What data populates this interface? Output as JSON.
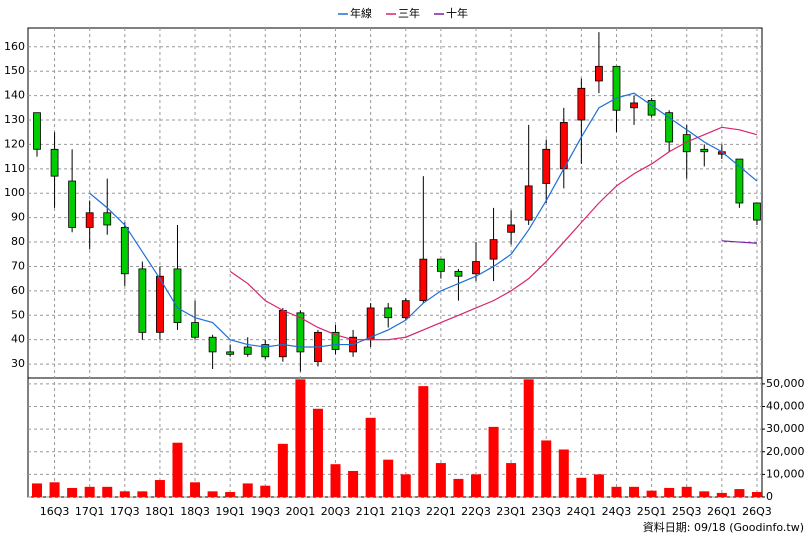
{
  "chart_data": [
    {
      "type": "candlestick",
      "categories": [
        null,
        "16Q3",
        null,
        "17Q1",
        null,
        "17Q3",
        null,
        "18Q1",
        null,
        "18Q3",
        null,
        "19Q1",
        null,
        "19Q3",
        null,
        "20Q1",
        null,
        "20Q3",
        null,
        "21Q1",
        null,
        "21Q3",
        null,
        "22Q1",
        null,
        "22Q3",
        null,
        "23Q1",
        null,
        "23Q3",
        null,
        "24Q1",
        null,
        "24Q3",
        null,
        "25Q1",
        null,
        "25Q3",
        null,
        "26Q1",
        null,
        "26Q3"
      ],
      "open": [
        133,
        118,
        105,
        86,
        92,
        86,
        69,
        43,
        69,
        47,
        41,
        35,
        37,
        38,
        33,
        51,
        31,
        43,
        35,
        40,
        53,
        49,
        56,
        73,
        68,
        67,
        73,
        84,
        89,
        104,
        110,
        130,
        146,
        152,
        135,
        138,
        133,
        124,
        118,
        116,
        114,
        96
      ],
      "high": [
        133,
        125,
        118,
        97,
        106,
        88,
        72,
        70,
        87,
        56,
        42,
        38,
        41,
        40,
        53,
        52,
        44,
        46,
        44,
        55,
        55,
        57,
        107,
        73,
        69,
        80,
        94,
        93,
        128,
        122,
        135,
        147,
        166,
        152,
        140,
        139,
        134,
        128,
        120,
        120,
        114,
        96
      ],
      "low": [
        115,
        94,
        84,
        77,
        83,
        62,
        40,
        40,
        44,
        40,
        28,
        33,
        33,
        32,
        31,
        27,
        29,
        34,
        33,
        37,
        45,
        48,
        55,
        65,
        56,
        64,
        64,
        79,
        87,
        96,
        102,
        112,
        141,
        125,
        128,
        131,
        117,
        106,
        111,
        114,
        94,
        87
      ],
      "close": [
        118,
        107,
        86,
        92,
        87,
        67,
        43,
        66,
        47,
        41,
        35,
        34,
        34,
        33,
        52,
        35,
        43,
        36,
        41,
        53,
        49,
        56,
        73,
        68,
        66,
        72,
        81,
        87,
        103,
        118,
        129,
        143,
        152,
        134,
        137,
        132,
        121,
        117,
        117,
        117,
        96,
        89
      ],
      "up_color": "#ff0000",
      "down_color": "#00cc00",
      "series": [
        {
          "name": "年線",
          "color": "#1f6fd6",
          "values": [
            null,
            null,
            null,
            100,
            94,
            87,
            76,
            65,
            53,
            49,
            47,
            40,
            38,
            37,
            38,
            37,
            37,
            38,
            38,
            41,
            44,
            48,
            55,
            60,
            63,
            66,
            70,
            75,
            85,
            97,
            110,
            123,
            135,
            139,
            141,
            136,
            131,
            126,
            121,
            117,
            111,
            105
          ]
        },
        {
          "name": "三年",
          "color": "#d6246e",
          "values": [
            null,
            null,
            null,
            null,
            null,
            null,
            null,
            null,
            null,
            null,
            null,
            68,
            63,
            56,
            52,
            49,
            45,
            42,
            40,
            40,
            40,
            41,
            44,
            47,
            50,
            53,
            56,
            60,
            65,
            72,
            80,
            88,
            96,
            103,
            108,
            112,
            117,
            121,
            124,
            127,
            126,
            124
          ]
        },
        {
          "name": "十年",
          "color": "#7a1fa8",
          "values": [
            null,
            null,
            null,
            null,
            null,
            null,
            null,
            null,
            null,
            null,
            null,
            null,
            null,
            null,
            null,
            null,
            null,
            null,
            null,
            null,
            null,
            null,
            null,
            null,
            null,
            null,
            null,
            null,
            null,
            null,
            null,
            null,
            null,
            null,
            null,
            null,
            null,
            null,
            null,
            80.5,
            80,
            79.5
          ]
        }
      ],
      "ylim": [
        24.3,
        167.7
      ],
      "yticks": [
        30,
        40,
        50,
        60,
        70,
        80,
        90,
        100,
        110,
        120,
        130,
        140,
        150,
        160
      ],
      "grid": true,
      "legend": "top"
    },
    {
      "type": "bar",
      "color": "#ff0000",
      "values": [
        6000,
        6500,
        4000,
        4500,
        4500,
        2500,
        2500,
        7500,
        24000,
        6500,
        2500,
        2200,
        6000,
        5000,
        23500,
        52000,
        39000,
        14500,
        11500,
        35000,
        16500,
        10000,
        49000,
        15000,
        8000,
        10000,
        31000,
        15000,
        52000,
        25000,
        21000,
        8500,
        10000,
        4500,
        4500,
        2800,
        4000,
        4500,
        2500,
        1800,
        3500,
        2200
      ],
      "ylim": [
        0,
        52600
      ],
      "yticks": [
        0,
        {
          "value": 10000,
          "label": "10,000"
        },
        {
          "value": 20000,
          "label": "20,000"
        },
        {
          "value": 30000,
          "label": "30,000"
        },
        {
          "value": 40000,
          "label": "40,000"
        },
        {
          "value": 50000,
          "label": "50,000"
        }
      ],
      "grid": true
    }
  ],
  "footer": "資料日期: 09/18 (Goodinfo.tw)"
}
